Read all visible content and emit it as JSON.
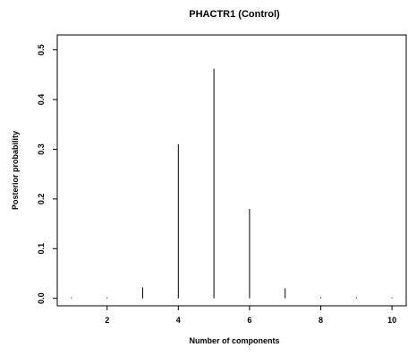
{
  "chart_data": {
    "type": "bar",
    "title": "PHACTR1 (Control)",
    "xlabel": "Number of components",
    "ylabel": "Posterior probability",
    "x": [
      1,
      2,
      3,
      4,
      5,
      6,
      7,
      8,
      9,
      10
    ],
    "values": [
      0.0,
      0.0,
      0.022,
      0.31,
      0.462,
      0.18,
      0.02,
      0.0,
      0.0,
      0.0
    ],
    "xlim": [
      0.6,
      10.4
    ],
    "ylim": [
      -0.015,
      0.53
    ],
    "x_ticks": [
      2,
      4,
      6,
      8,
      10
    ],
    "x_tick_labels": [
      "2",
      "4",
      "6",
      "8",
      "10"
    ],
    "y_ticks": [
      0.0,
      0.1,
      0.2,
      0.3,
      0.4,
      0.5
    ],
    "y_tick_labels": [
      "0.0",
      "0.1",
      "0.2",
      "0.3",
      "0.4",
      "0.5"
    ],
    "grid": false,
    "legend": "none",
    "colors": {
      "line": "#000000",
      "background": "#ffffff"
    }
  }
}
